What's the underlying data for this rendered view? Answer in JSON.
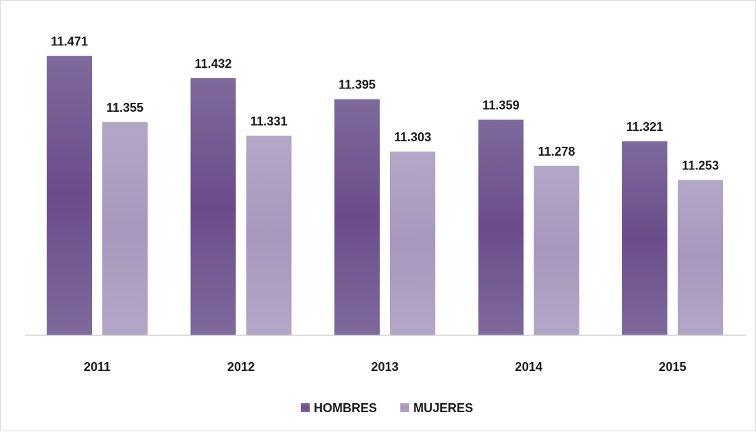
{
  "chart_data": {
    "type": "bar",
    "title": "",
    "xlabel": "",
    "ylabel": "",
    "categories": [
      "2011",
      "2012",
      "2013",
      "2014",
      "2015"
    ],
    "series": [
      {
        "name": "HOMBRES",
        "values": [
          11471,
          11432,
          11395,
          11359,
          11321
        ],
        "labels": [
          "11.471",
          "11.432",
          "11.395",
          "11.359",
          "11.321"
        ],
        "color": "#6b4c8a",
        "color_light": "#7f6a9c"
      },
      {
        "name": "MUJERES",
        "values": [
          11355,
          11331,
          11303,
          11278,
          11253
        ],
        "labels": [
          "11.355",
          "11.331",
          "11.303",
          "11.278",
          "11.253"
        ],
        "color": "#a797bd",
        "color_light": "#b3a7c7"
      }
    ],
    "ylim": [
      10980,
      11520
    ],
    "grid": false,
    "legend": "bottom-center"
  }
}
